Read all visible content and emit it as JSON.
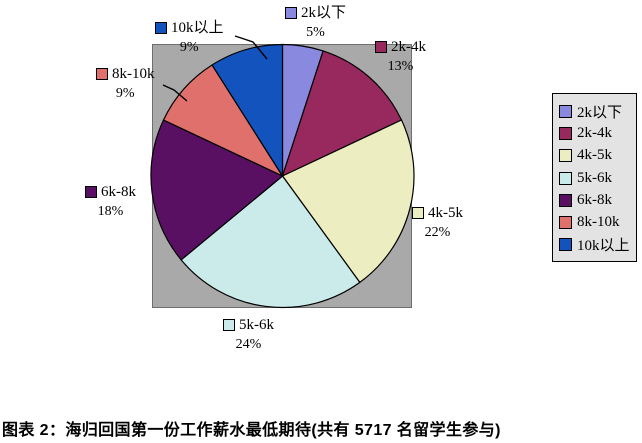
{
  "chart_data": {
    "type": "pie",
    "title": "图表 2：海归回国第一份工作薪水最低期待(共有 5717 名留学生参与)",
    "legend_position": "right",
    "start_angle_deg": 0,
    "direction": "clockwise",
    "plot_area_color": "#A9A9A9",
    "legend_bg_color": "#E3E3E3",
    "slices": [
      {
        "label": "2k以下",
        "value": 5,
        "percent_label": "5%",
        "color": "#8989E0"
      },
      {
        "label": "2k-4k",
        "value": 13,
        "percent_label": "13%",
        "color": "#97295F"
      },
      {
        "label": "4k-5k",
        "value": 22,
        "percent_label": "22%",
        "color": "#EDEDC2"
      },
      {
        "label": "5k-6k",
        "value": 24,
        "percent_label": "24%",
        "color": "#CBEBEA"
      },
      {
        "label": "6k-8k",
        "value": 18,
        "percent_label": "18%",
        "color": "#591062"
      },
      {
        "label": "8k-10k",
        "value": 9,
        "percent_label": "9%",
        "color": "#E0706B"
      },
      {
        "label": "10k以上",
        "value": 9,
        "percent_label": "9%",
        "color": "#1353BE"
      }
    ]
  },
  "caption": "图表 2：海归回国第一份工作薪水最低期待(共有 5717 名留学生参与)"
}
